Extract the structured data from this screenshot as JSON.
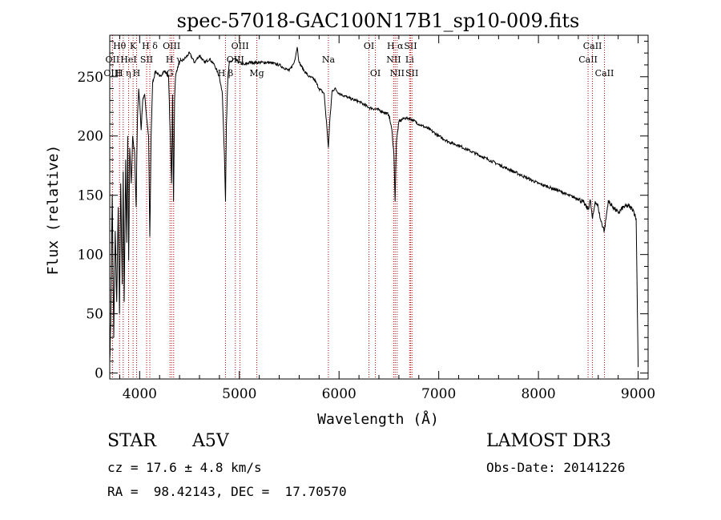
{
  "chart_data": {
    "type": "line",
    "title": "spec-57018-GAC100N17B1_sp10-009.fits",
    "xlabel": "Wavelength (Å)",
    "ylabel": "Flux (relative)",
    "xlim": [
      3700,
      9100
    ],
    "ylim": [
      -5,
      285
    ],
    "xticks": [
      4000,
      5000,
      6000,
      7000,
      8000,
      9000
    ],
    "yticks": [
      0,
      50,
      100,
      150,
      200,
      250
    ],
    "grid": false,
    "line_color": "#000000",
    "marker_color": "#c00000",
    "series": [
      {
        "name": "flux",
        "x": [
          3700,
          3710,
          3725,
          3740,
          3755,
          3770,
          3785,
          3798,
          3810,
          3825,
          3835,
          3845,
          3860,
          3870,
          3880,
          3890,
          3900,
          3915,
          3930,
          3950,
          3965,
          3970,
          3980,
          3990,
          4000,
          4015,
          4030,
          4050,
          4070,
          4090,
          4102,
          4115,
          4130,
          4160,
          4200,
          4250,
          4290,
          4320,
          4330,
          4340,
          4350,
          4360,
          4370,
          4400,
          4450,
          4500,
          4550,
          4600,
          4650,
          4700,
          4750,
          4800,
          4830,
          4850,
          4861,
          4870,
          4885,
          4900,
          4950,
          5000,
          5050,
          5100,
          5200,
          5300,
          5400,
          5500,
          5550,
          5580,
          5600,
          5650,
          5700,
          5750,
          5800,
          5850,
          5880,
          5893,
          5905,
          5930,
          5960,
          6000,
          6100,
          6200,
          6300,
          6400,
          6450,
          6500,
          6530,
          6550,
          6562,
          6575,
          6600,
          6650,
          6700,
          6750,
          6800,
          6900,
          7000,
          7100,
          7200,
          7300,
          7400,
          7500,
          7600,
          7700,
          7800,
          7900,
          8000,
          8100,
          8200,
          8300,
          8400,
          8450,
          8498,
          8520,
          8542,
          8570,
          8600,
          8620,
          8662,
          8700,
          8750,
          8800,
          8850,
          8900,
          8950,
          8980,
          9000
        ],
        "values": [
          10,
          40,
          150,
          30,
          120,
          60,
          140,
          50,
          160,
          75,
          170,
          60,
          180,
          110,
          200,
          95,
          190,
          160,
          200,
          185,
          140,
          175,
          220,
          240,
          230,
          205,
          230,
          235,
          215,
          200,
          115,
          200,
          245,
          255,
          250,
          255,
          250,
          160,
          235,
          145,
          230,
          250,
          255,
          262,
          265,
          270,
          262,
          268,
          262,
          265,
          260,
          250,
          235,
          185,
          145,
          210,
          250,
          262,
          265,
          262,
          260,
          262,
          262,
          262,
          260,
          255,
          262,
          275,
          262,
          255,
          250,
          248,
          240,
          236,
          205,
          190,
          210,
          238,
          240,
          236,
          232,
          229,
          224,
          222,
          220,
          218,
          205,
          185,
          145,
          195,
          212,
          215,
          215,
          213,
          210,
          206,
          200,
          195,
          192,
          188,
          184,
          180,
          176,
          172,
          168,
          164,
          160,
          157,
          154,
          150,
          147,
          144,
          138,
          146,
          130,
          145,
          140,
          130,
          120,
          145,
          140,
          135,
          140,
          141,
          138,
          130,
          5
        ]
      }
    ],
    "line_markers": [
      {
        "name": "OII",
        "x": 3727,
        "row": 1
      },
      {
        "name": "OIII",
        "x": 3727,
        "row": 2
      },
      {
        "name": "Hθ",
        "x": 3798,
        "row": 0
      },
      {
        "name": "H η",
        "x": 3835,
        "row": 2
      },
      {
        "name": "HeI",
        "x": 3889,
        "row": 1
      },
      {
        "name": "K",
        "x": 3934,
        "row": 0
      },
      {
        "name": "H",
        "x": 3969,
        "row": 2
      },
      {
        "name": "SII",
        "x": 4070,
        "row": 1
      },
      {
        "name": "H δ",
        "x": 4102,
        "row": 0
      },
      {
        "name": "G",
        "x": 4304,
        "row": 2
      },
      {
        "name": "OIII",
        "x": 4320,
        "row": 0
      },
      {
        "name": "H γ",
        "x": 4341,
        "row": 1
      },
      {
        "name": "H β",
        "x": 4861,
        "row": 2
      },
      {
        "name": "OIII",
        "x": 4960,
        "row": 1
      },
      {
        "name": "OIII",
        "x": 5007,
        "row": 0
      },
      {
        "name": "Mg",
        "x": 5175,
        "row": 2
      },
      {
        "name": "Na",
        "x": 5893,
        "row": 1
      },
      {
        "name": "OI",
        "x": 6300,
        "row": 0
      },
      {
        "name": "OI",
        "x": 6364,
        "row": 2
      },
      {
        "name": "NII",
        "x": 6548,
        "row": 1
      },
      {
        "name": "H α",
        "x": 6563,
        "row": 0
      },
      {
        "name": "NII",
        "x": 6583,
        "row": 2
      },
      {
        "name": "SII",
        "x": 6717,
        "row": 0
      },
      {
        "name": "Li",
        "x": 6708,
        "row": 1
      },
      {
        "name": "SII",
        "x": 6731,
        "row": 2
      },
      {
        "name": "CaII",
        "x": 8498,
        "row": 1
      },
      {
        "name": "CaII",
        "x": 8542,
        "row": 0
      },
      {
        "name": "CaII",
        "x": 8662,
        "row": 2
      }
    ]
  },
  "info": {
    "object_class": "STAR",
    "subclass": "A5V",
    "survey": "LAMOST DR3",
    "cz": "cz = 17.6 ± 4.8 km/s",
    "obs_date": "Obs-Date: 20141226",
    "coords": "RA =  98.42143, DEC =  17.70570"
  }
}
